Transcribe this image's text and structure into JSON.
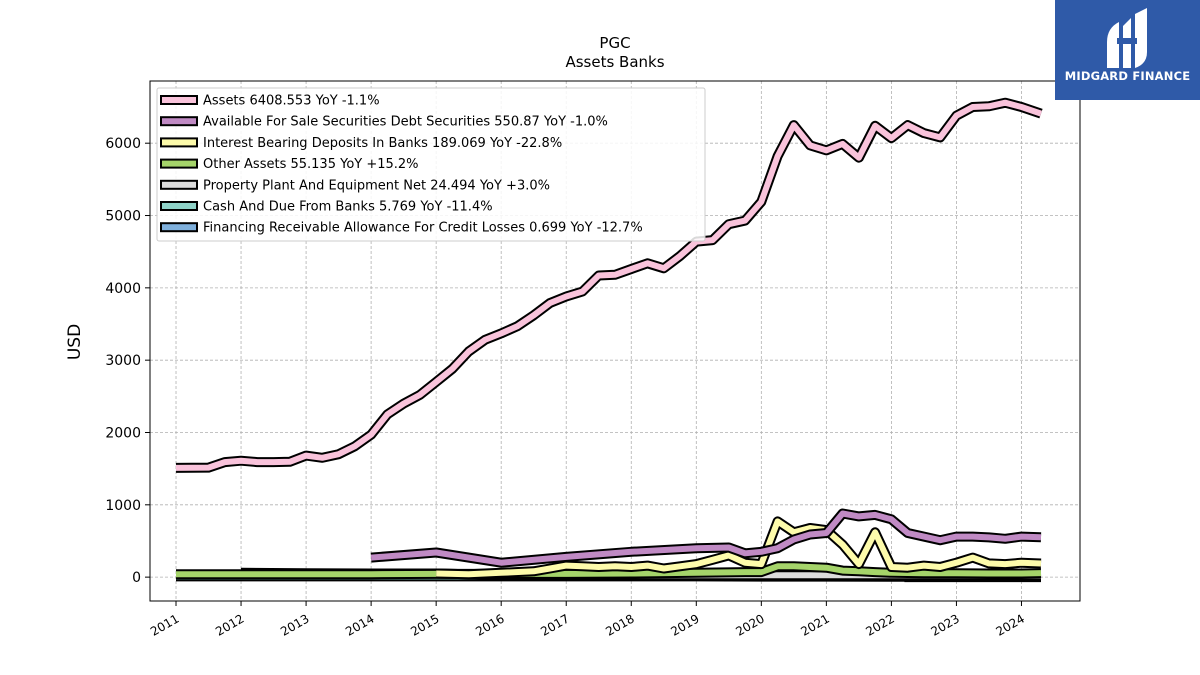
{
  "brand": {
    "name": "MIDGARD FINANCE",
    "logo_icon": "midgard-logo-icon",
    "bg_color": "#2f5aa8"
  },
  "chart_data": {
    "type": "line",
    "title": "PGC",
    "subtitle": "Assets Banks",
    "xlabel": "",
    "ylabel": "USD",
    "xlim": [
      2010.6,
      2024.9
    ],
    "ylim": [
      -330,
      6860
    ],
    "yticks": [
      0,
      1000,
      2000,
      3000,
      4000,
      5000,
      6000
    ],
    "xticks": [
      "2011",
      "2012",
      "2013",
      "2014",
      "2015",
      "2016",
      "2017",
      "2018",
      "2019",
      "2020",
      "2021",
      "2022",
      "2023",
      "2024"
    ],
    "grid": true,
    "legend_position": "top-left",
    "series": [
      {
        "name": "Assets",
        "legend": "Assets  6408.553 YoY -1.1%",
        "color": "#f9c3db",
        "x": [
          2011.0,
          2011.5,
          2011.75,
          2012.0,
          2012.25,
          2012.5,
          2012.75,
          2013.0,
          2013.25,
          2013.5,
          2013.75,
          2014.0,
          2014.25,
          2014.5,
          2014.75,
          2015.0,
          2015.25,
          2015.5,
          2015.75,
          2016.0,
          2016.25,
          2016.5,
          2016.75,
          2017.0,
          2017.25,
          2017.5,
          2017.75,
          2018.0,
          2018.25,
          2018.5,
          2018.75,
          2019.0,
          2019.25,
          2019.5,
          2019.75,
          2020.0,
          2020.25,
          2020.5,
          2020.75,
          2021.0,
          2021.25,
          2021.5,
          2021.75,
          2022.0,
          2022.25,
          2022.5,
          2022.75,
          2023.0,
          2023.25,
          2023.5,
          2023.75,
          2024.0,
          2024.3
        ],
        "y": [
          1510,
          1515,
          1590,
          1610,
          1590,
          1590,
          1595,
          1680,
          1650,
          1700,
          1810,
          1970,
          2250,
          2400,
          2520,
          2700,
          2880,
          3120,
          3280,
          3370,
          3470,
          3620,
          3790,
          3880,
          3950,
          4170,
          4180,
          4260,
          4340,
          4270,
          4440,
          4640,
          4660,
          4880,
          4930,
          5190,
          5820,
          6250,
          5970,
          5900,
          5990,
          5800,
          6240,
          6070,
          6250,
          6140,
          6080,
          6380,
          6500,
          6510,
          6560,
          6500,
          6408.553
        ]
      },
      {
        "name": "Available For Sale Securities Debt Securities",
        "legend": "Available For Sale Securities Debt Securities  550.87 YoY -1.0%",
        "color": "#c08ac4",
        "x": [
          2014.0,
          2015.0,
          2016.0,
          2017.0,
          2018.0,
          2019.0,
          2019.5,
          2019.75,
          2020.0,
          2020.25,
          2020.5,
          2020.75,
          2021.0,
          2021.25,
          2021.5,
          2021.75,
          2022.0,
          2022.25,
          2022.5,
          2022.75,
          2023.0,
          2023.25,
          2023.5,
          2023.75,
          2024.0,
          2024.3
        ],
        "y": [
          270,
          340,
          200,
          280,
          350,
          400,
          410,
          330,
          350,
          400,
          520,
          590,
          610,
          880,
          840,
          860,
          800,
          610,
          560,
          510,
          560,
          560,
          550,
          530,
          560,
          550.87
        ]
      },
      {
        "name": "Interest Bearing Deposits In Banks",
        "legend": "Interest Bearing Deposits In Banks  189.069 YoY -22.8%",
        "color": "#fdfbab",
        "x": [
          2015.0,
          2015.5,
          2016.0,
          2016.5,
          2016.75,
          2017.0,
          2017.25,
          2017.5,
          2017.75,
          2018.0,
          2018.25,
          2018.5,
          2018.75,
          2019.0,
          2019.25,
          2019.5,
          2019.75,
          2020.0,
          2020.25,
          2020.5,
          2020.75,
          2021.0,
          2021.25,
          2021.5,
          2021.75,
          2022.0,
          2022.25,
          2022.5,
          2022.75,
          2023.0,
          2023.25,
          2023.5,
          2023.75,
          2024.0,
          2024.3
        ],
        "y": [
          50,
          40,
          60,
          80,
          120,
          160,
          150,
          140,
          150,
          140,
          160,
          120,
          150,
          180,
          240,
          300,
          200,
          180,
          770,
          620,
          680,
          650,
          450,
          180,
          620,
          140,
          130,
          160,
          140,
          200,
          270,
          190,
          180,
          200,
          189.069
        ]
      },
      {
        "name": "Other Assets",
        "legend": "Other Assets  55.135 YoY +15.2%",
        "color": "#a5d46a",
        "x": [
          2011.0,
          2012.0,
          2013.0,
          2014.0,
          2015.0,
          2016.0,
          2017.0,
          2018.0,
          2019.0,
          2019.75,
          2020.0,
          2020.25,
          2020.5,
          2020.75,
          2021.0,
          2021.25,
          2021.5,
          2021.75,
          2022.0,
          2022.5,
          2023.0,
          2023.5,
          2024.0,
          2024.3
        ],
        "y": [
          40,
          40,
          40,
          40,
          45,
          45,
          45,
          50,
          60,
          70,
          70,
          150,
          150,
          140,
          130,
          90,
          80,
          70,
          60,
          55,
          55,
          50,
          50,
          55.135
        ]
      },
      {
        "name": "Property Plant And Equipment Net",
        "legend": "Property Plant And Equipment Net  24.494 YoY +3.0%",
        "color": "#dcdcdc",
        "x": [
          2012.0,
          2013.0,
          2014.0,
          2015.0,
          2016.0,
          2017.0,
          2018.0,
          2019.0,
          2020.0,
          2021.0,
          2022.0,
          2023.0,
          2024.0,
          2024.3
        ],
        "y": [
          60,
          55,
          50,
          50,
          30,
          30,
          25,
          25,
          25,
          25,
          25,
          25,
          24,
          24.494
        ]
      },
      {
        "name": "Cash And Due From Banks",
        "legend": "Cash And Due From Banks  5.769 YoY -11.4%",
        "color": "#8fd3c8",
        "x": [
          2011.0,
          2012.0,
          2013.0,
          2014.0,
          2015.0,
          2016.0,
          2017.0,
          2018.0,
          2019.0,
          2020.0,
          2021.0,
          2022.0,
          2023.0,
          2024.0,
          2024.3
        ],
        "y": [
          10,
          10,
          10,
          10,
          10,
          10,
          10,
          10,
          10,
          8,
          8,
          6,
          6,
          6,
          5.769
        ]
      },
      {
        "name": "Financing Receivable Allowance For Credit Losses",
        "legend": "Financing Receivable Allowance For Credit Losses  0.699 YoY -12.7%",
        "color": "#7fb0dc",
        "x": [
          2022.2,
          2023.0,
          2024.0,
          2024.3
        ],
        "y": [
          0.8,
          0.75,
          0.7,
          0.699
        ]
      }
    ]
  }
}
